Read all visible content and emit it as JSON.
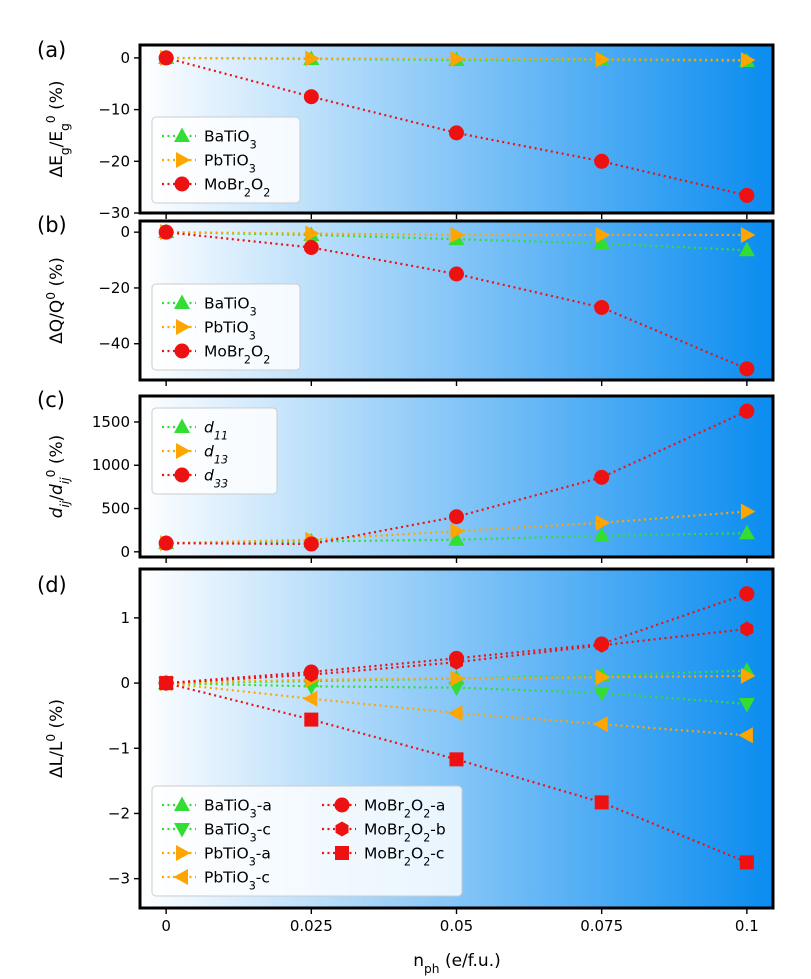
{
  "xlabel": "n_ph (e/f.u.)",
  "x": [
    0,
    0.025,
    0.05,
    0.075,
    0.1
  ],
  "x_ticks": [
    "0",
    "0.025",
    "0.05",
    "0.075",
    "0.1"
  ],
  "colors": {
    "green": "#33dd33",
    "orange": "#ffa500",
    "red": "#ee1111",
    "grad_start": "#ffffff",
    "grad_end": "#0a8cf0"
  },
  "chart_data": [
    {
      "type": "line",
      "panel_label": "(a)",
      "ylabel": "ΔE_g/E_g^0 (%)",
      "ylim": [
        -30,
        2.5
      ],
      "yticks": [
        0,
        -10,
        -20,
        -30
      ],
      "ytick_labels": [
        "0",
        "−10",
        "−20",
        "−30"
      ],
      "legend_position": "left",
      "legend_cols": 1,
      "series": [
        {
          "name": "BaTiO3",
          "label": "BaTiO",
          "sub": "3",
          "color": "#33dd33",
          "marker": "triangle-up",
          "values": [
            0,
            -0.2,
            -0.4,
            -0.4,
            -0.6
          ]
        },
        {
          "name": "PbTiO3",
          "label": "PbTiO",
          "sub": "3",
          "color": "#ffa500",
          "marker": "triangle-right",
          "values": [
            0,
            -0.1,
            -0.2,
            -0.3,
            -0.4
          ]
        },
        {
          "name": "MoBr2O2",
          "label": "MoBr",
          "sub": "2",
          "label2": "O",
          "sub2": "2",
          "color": "#ee1111",
          "marker": "circle",
          "values": [
            0,
            -7.5,
            -14.5,
            -20,
            -26.6
          ]
        }
      ]
    },
    {
      "type": "line",
      "panel_label": "(b)",
      "ylabel": "ΔQ/Q^0 (%)",
      "ylim": [
        -53,
        4
      ],
      "yticks": [
        0,
        -20,
        -40
      ],
      "ytick_labels": [
        "0",
        "−20",
        "−40"
      ],
      "legend_position": "left",
      "legend_cols": 1,
      "series": [
        {
          "name": "BaTiO3",
          "label": "BaTiO",
          "sub": "3",
          "color": "#33dd33",
          "marker": "triangle-up",
          "values": [
            0,
            -1,
            -2.5,
            -4,
            -6.5
          ]
        },
        {
          "name": "PbTiO3",
          "label": "PbTiO",
          "sub": "3",
          "color": "#ffa500",
          "marker": "triangle-right",
          "values": [
            0,
            -0.5,
            -1,
            -1,
            -1
          ]
        },
        {
          "name": "MoBr2O2",
          "label": "MoBr",
          "sub": "2",
          "label2": "O",
          "sub2": "2",
          "color": "#ee1111",
          "marker": "circle",
          "values": [
            0,
            -5.5,
            -15,
            -27,
            -49
          ]
        }
      ]
    },
    {
      "type": "line",
      "panel_label": "(c)",
      "ylabel": "d_ij/d_ij^0 (%)",
      "ylim": [
        -60,
        1800
      ],
      "yticks": [
        0,
        500,
        1000,
        1500
      ],
      "ytick_labels": [
        "0",
        "500",
        "1000",
        "1500"
      ],
      "legend_position": "upper-left",
      "legend_cols": 1,
      "series": [
        {
          "name": "d11",
          "label": "d",
          "sub": "11",
          "italic": true,
          "color": "#33dd33",
          "marker": "triangle-up",
          "values": [
            100,
            120,
            140,
            185,
            215
          ]
        },
        {
          "name": "d13",
          "label": "d",
          "sub": "13",
          "italic": true,
          "color": "#ffa500",
          "marker": "triangle-right",
          "values": [
            100,
            140,
            240,
            335,
            465
          ]
        },
        {
          "name": "d33",
          "label": "d",
          "sub": "33",
          "italic": true,
          "color": "#ee1111",
          "marker": "circle",
          "values": [
            100,
            90,
            405,
            860,
            1625
          ]
        }
      ]
    },
    {
      "type": "line",
      "panel_label": "(d)",
      "ylabel": "ΔL/L^0 (%)",
      "ylim": [
        -3.45,
        1.75
      ],
      "yticks": [
        1,
        0,
        -1,
        -2,
        -3
      ],
      "ytick_labels": [
        "1",
        "0",
        "−1",
        "−2",
        "−3"
      ],
      "legend_position": "lower-left",
      "legend_cols": 2,
      "series": [
        {
          "name": "BaTiO3-a",
          "label": "BaTiO",
          "sub": "3",
          "label2": "-a",
          "color": "#33dd33",
          "marker": "triangle-up",
          "values": [
            0,
            0.03,
            0.07,
            0.12,
            0.19
          ]
        },
        {
          "name": "BaTiO3-c",
          "label": "BaTiO",
          "sub": "3",
          "label2": "-c",
          "color": "#33dd33",
          "marker": "triangle-down",
          "values": [
            0,
            -0.05,
            -0.07,
            -0.15,
            -0.32
          ]
        },
        {
          "name": "PbTiO3-a",
          "label": "PbTiO",
          "sub": "3",
          "label2": "-a",
          "color": "#ffa500",
          "marker": "triangle-right",
          "values": [
            0,
            0.05,
            0.07,
            0.09,
            0.11
          ]
        },
        {
          "name": "PbTiO3-c",
          "label": "PbTiO",
          "sub": "3",
          "label2": "-c",
          "color": "#ffa500",
          "marker": "triangle-left",
          "values": [
            0,
            -0.24,
            -0.46,
            -0.63,
            -0.8
          ]
        },
        {
          "name": "MoBr2O2-a",
          "label": "MoBr",
          "sub": "2",
          "label2": "O",
          "sub2": "2",
          "label3": "-a",
          "color": "#ee1111",
          "marker": "circle",
          "values": [
            0,
            0.17,
            0.38,
            0.6,
            1.37
          ]
        },
        {
          "name": "MoBr2O2-b",
          "label": "MoBr",
          "sub": "2",
          "label2": "O",
          "sub2": "2",
          "label3": "-b",
          "color": "#ee1111",
          "marker": "hexagon",
          "values": [
            0,
            0.13,
            0.32,
            0.58,
            0.83
          ]
        },
        {
          "name": "MoBr2O2-c",
          "label": "MoBr",
          "sub": "2",
          "label2": "O",
          "sub2": "2",
          "label3": "-c",
          "color": "#ee1111",
          "marker": "square",
          "values": [
            0,
            -0.56,
            -1.17,
            -1.83,
            -2.75
          ]
        }
      ]
    }
  ]
}
